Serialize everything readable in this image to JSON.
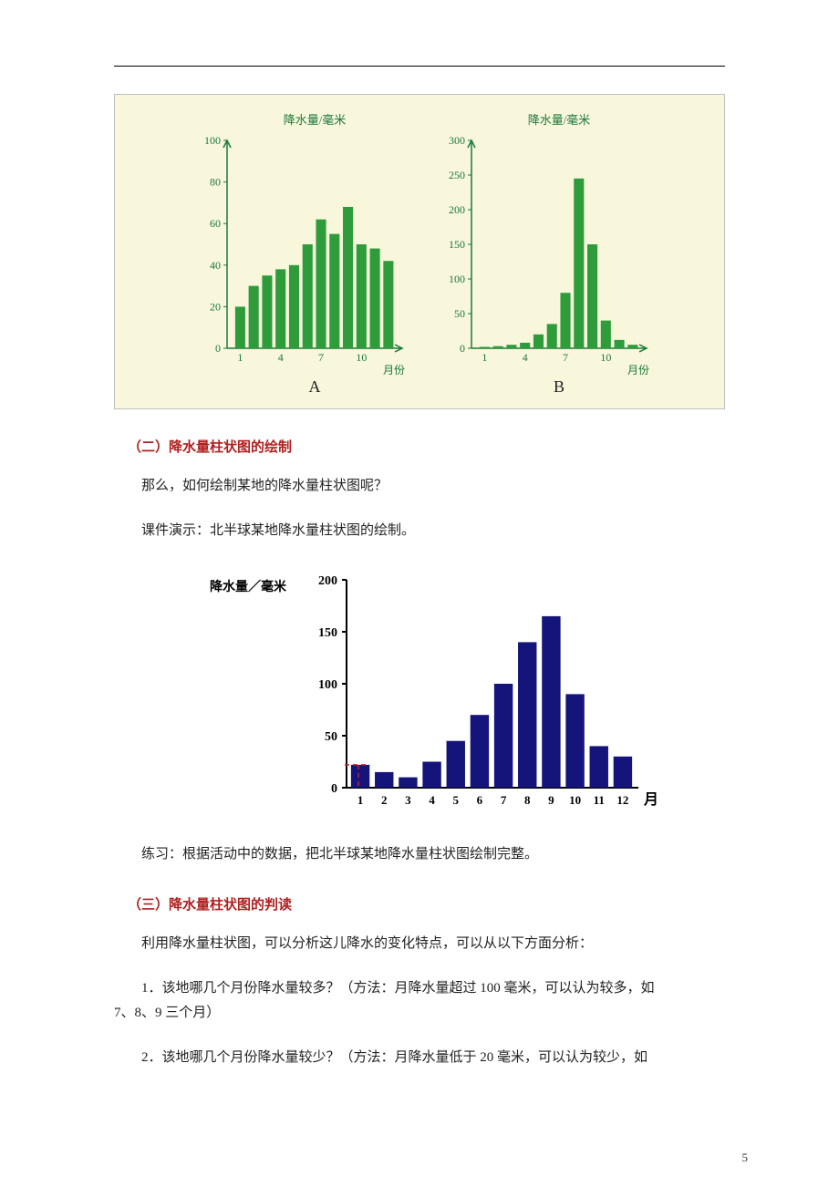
{
  "pageNumber": "5",
  "figAB": {
    "background": "#f8f6db",
    "border_color": "#c0c0c0",
    "axis_title": "降水量/毫米",
    "axis_title_color": "#1a7a3a",
    "axis_title_fontsize": 13,
    "x_axis_label": "月份",
    "bar_color": "#2e9c3a",
    "axis_color": "#1a7a3a",
    "tick_color": "#1a7a3a",
    "letter_fontsize": 18,
    "letter_color": "#222222",
    "A": {
      "letter": "A",
      "ylim": [
        0,
        100
      ],
      "ytick_step": 20,
      "yticks": [
        0,
        20,
        40,
        60,
        80,
        100
      ],
      "x_ticks": [
        1,
        4,
        7,
        10
      ],
      "values": [
        20,
        30,
        35,
        38,
        40,
        50,
        62,
        55,
        68,
        50,
        48,
        42
      ]
    },
    "B": {
      "letter": "B",
      "ylim": [
        0,
        300
      ],
      "ytick_step": 50,
      "yticks": [
        0,
        50,
        100,
        150,
        200,
        250,
        300
      ],
      "x_ticks": [
        1,
        4,
        7,
        10
      ],
      "values": [
        2,
        3,
        5,
        8,
        20,
        35,
        80,
        245,
        150,
        40,
        12,
        5
      ]
    }
  },
  "sec2": {
    "title": "（二）降水量柱状图的绘制",
    "p1": "那么，如何绘制某地的降水量柱状图呢？",
    "p2": "课件演示：北半球某地降水量柱状图的绘制。"
  },
  "figC": {
    "y_title": "降水量／毫米",
    "y_title_fontsize": 14,
    "y_title_color": "#000000",
    "x_title": "月",
    "x_title_fontsize": 16,
    "x_title_color": "#000000",
    "ylim": [
      0,
      200
    ],
    "ytick_step": 50,
    "yticks": [
      0,
      50,
      100,
      150,
      200
    ],
    "x_labels": [
      1,
      2,
      3,
      4,
      5,
      6,
      7,
      8,
      9,
      10,
      11,
      12
    ],
    "bar_color": "#14147a",
    "axis_color": "#000000",
    "dash_color": "#cc2222",
    "values": [
      22,
      15,
      10,
      25,
      45,
      70,
      100,
      140,
      165,
      90,
      40,
      30
    ]
  },
  "afterFigC": "练习：根据活动中的数据，把北半球某地降水量柱状图绘制完整。",
  "sec3": {
    "title": "（三）降水量柱状图的判读",
    "p1": "利用降水量柱状图，可以分析这儿降水的变化特点，可以从以下方面分析：",
    "q1a": "1．该地哪几个月份降水量较多？（方法：月降水量超过 100 毫米，可以认为较多，如",
    "q1b": "7、8、9 三个月）",
    "q2": "2．该地哪几个月份降水量较少？（方法：月降水量低于 20 毫米，可以认为较少，如"
  }
}
